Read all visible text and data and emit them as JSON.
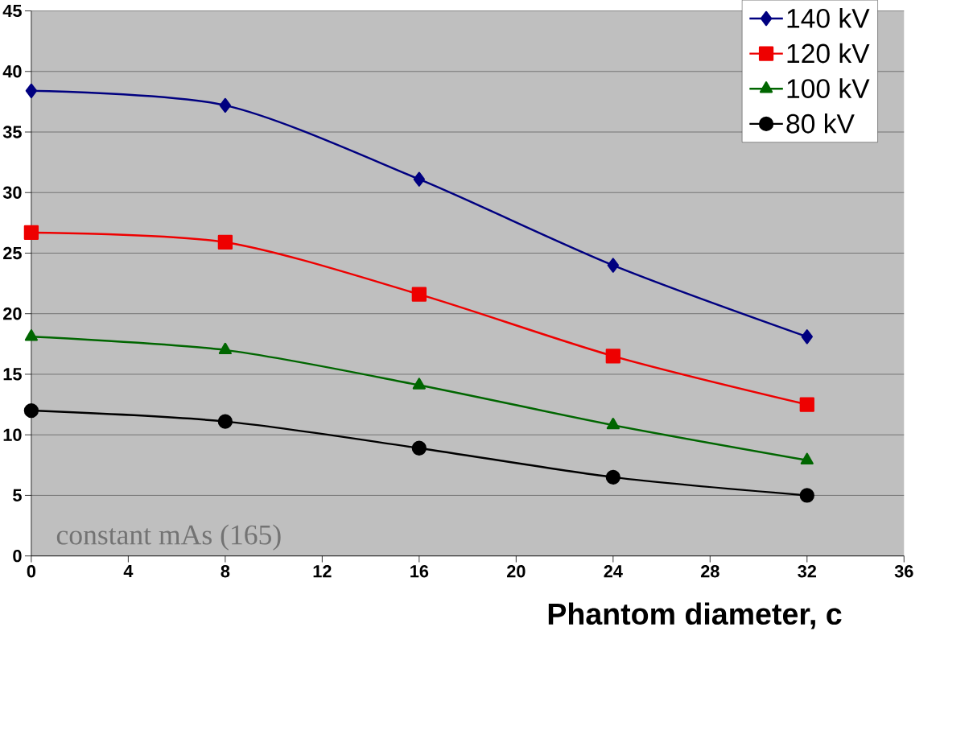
{
  "chart_data": {
    "type": "line",
    "xlabel": "Phantom diameter, c",
    "x": [
      0,
      8,
      16,
      24,
      32
    ],
    "series": [
      {
        "name": "140 kV",
        "color": "#000080",
        "marker": "diamond",
        "values": [
          38.4,
          37.2,
          31.1,
          24.0,
          18.1
        ]
      },
      {
        "name": "120 kV",
        "color": "#ee0000",
        "marker": "square",
        "values": [
          26.7,
          25.9,
          21.6,
          16.5,
          12.5
        ]
      },
      {
        "name": "100 kV",
        "color": "#006600",
        "marker": "triangle",
        "values": [
          18.1,
          17.0,
          14.1,
          10.8,
          7.9
        ]
      },
      {
        "name": "80 kV",
        "color": "#000000",
        "marker": "circle",
        "values": [
          12.0,
          11.1,
          8.9,
          6.5,
          5.0
        ]
      }
    ],
    "xlim": [
      0,
      36
    ],
    "xticks": [
      0,
      4,
      8,
      12,
      16,
      20,
      24,
      28,
      32,
      36
    ],
    "ylim": [
      0,
      45
    ],
    "yticks": [
      0,
      5,
      10,
      15,
      20,
      25,
      30,
      35,
      40,
      45
    ],
    "grid": "y",
    "legend": "top right",
    "line_style": "solid",
    "annotations": [
      "constant mAs (165)"
    ]
  }
}
